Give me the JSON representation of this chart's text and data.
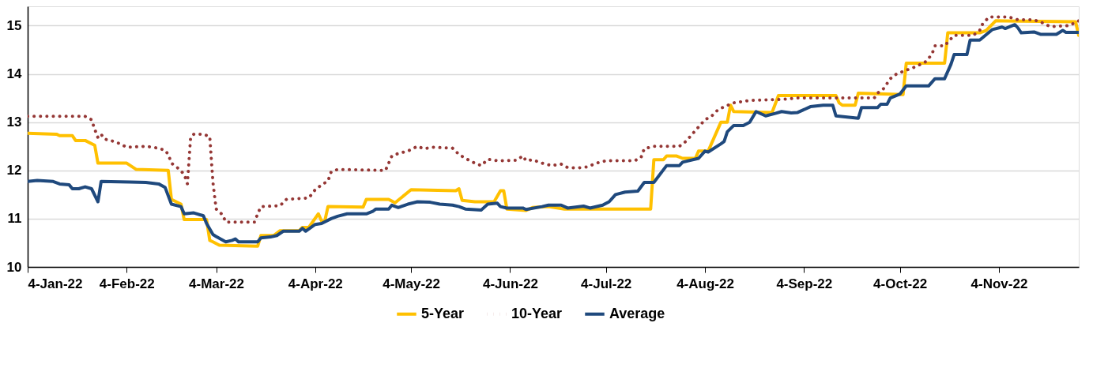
{
  "chart_data": {
    "type": "line",
    "xlim": [
      "2022-01-04",
      "2022-11-29"
    ],
    "xticks": [
      {
        "value": "2022-01-04",
        "label": "4-Jan-22"
      },
      {
        "value": "2022-02-04",
        "label": "4-Feb-22"
      },
      {
        "value": "2022-03-04",
        "label": "4-Mar-22"
      },
      {
        "value": "2022-04-04",
        "label": "4-Apr-22"
      },
      {
        "value": "2022-05-04",
        "label": "4-May-22"
      },
      {
        "value": "2022-06-04",
        "label": "4-Jun-22"
      },
      {
        "value": "2022-07-04",
        "label": "4-Jul-22"
      },
      {
        "value": "2022-08-04",
        "label": "4-Aug-22"
      },
      {
        "value": "2022-09-04",
        "label": "4-Sep-22"
      },
      {
        "value": "2022-10-04",
        "label": "4-Oct-22"
      },
      {
        "value": "2022-11-04",
        "label": "4-Nov-22"
      }
    ],
    "ylim": [
      10,
      15.4
    ],
    "yticks": [
      10,
      11,
      12,
      13,
      14,
      15
    ],
    "grid": "y",
    "legend": "bottom",
    "marker": "none",
    "series": [
      {
        "name": "5-Year",
        "color": "#ffc000",
        "line_style": "solid",
        "x": [
          "2022-01-04",
          "2022-01-13",
          "2022-01-14",
          "2022-01-18",
          "2022-01-19",
          "2022-01-22",
          "2022-01-25",
          "2022-01-26",
          "2022-02-04",
          "2022-02-07",
          "2022-02-17",
          "2022-02-18",
          "2022-02-21",
          "2022-02-22",
          "2022-03-01",
          "2022-03-02",
          "2022-03-03",
          "2022-03-05",
          "2022-03-17",
          "2022-03-18",
          "2022-03-22",
          "2022-03-24",
          "2022-03-30",
          "2022-03-31",
          "2022-04-02",
          "2022-04-05",
          "2022-04-06",
          "2022-04-07",
          "2022-04-08",
          "2022-04-19",
          "2022-04-20",
          "2022-04-27",
          "2022-04-29",
          "2022-05-04",
          "2022-05-18",
          "2022-05-19",
          "2022-05-20",
          "2022-05-24",
          "2022-05-30",
          "2022-06-01",
          "2022-06-02",
          "2022-06-03",
          "2022-06-09",
          "2022-06-11",
          "2022-06-16",
          "2022-06-21",
          "2022-07-18",
          "2022-07-19",
          "2022-07-22",
          "2022-07-23",
          "2022-07-26",
          "2022-07-28",
          "2022-08-01",
          "2022-08-02",
          "2022-08-05",
          "2022-08-09",
          "2022-08-11",
          "2022-08-12",
          "2022-08-13",
          "2022-08-25",
          "2022-08-27",
          "2022-09-14",
          "2022-09-15",
          "2022-09-16",
          "2022-09-20",
          "2022-09-21",
          "2022-10-05",
          "2022-10-06",
          "2022-10-18",
          "2022-10-19",
          "2022-10-29",
          "2022-10-31",
          "2022-11-03",
          "2022-11-28",
          "2022-11-29"
        ],
        "values": [
          12.77,
          12.75,
          12.72,
          12.72,
          12.62,
          12.62,
          12.52,
          12.15,
          12.15,
          12.02,
          12.0,
          11.4,
          11.3,
          10.98,
          10.98,
          10.55,
          10.52,
          10.45,
          10.43,
          10.65,
          10.65,
          10.75,
          10.75,
          10.82,
          10.82,
          11.1,
          10.95,
          10.95,
          11.25,
          11.24,
          11.4,
          11.4,
          11.33,
          11.6,
          11.58,
          11.62,
          11.38,
          11.35,
          11.35,
          11.58,
          11.58,
          11.2,
          11.17,
          11.23,
          11.25,
          11.2,
          11.2,
          12.22,
          12.22,
          12.3,
          12.3,
          12.25,
          12.25,
          12.4,
          12.4,
          13.0,
          13.0,
          13.35,
          13.22,
          13.2,
          13.55,
          13.55,
          13.4,
          13.35,
          13.35,
          13.6,
          13.57,
          14.22,
          14.22,
          14.85,
          14.85,
          14.9,
          15.1,
          15.08,
          14.8
        ]
      },
      {
        "name": "10-Year",
        "color": "#953735",
        "line_style": "dotted",
        "x": [
          "2022-01-04",
          "2022-01-22",
          "2022-01-24",
          "2022-01-25",
          "2022-01-26",
          "2022-01-27",
          "2022-01-28",
          "2022-01-31",
          "2022-02-02",
          "2022-02-04",
          "2022-02-10",
          "2022-02-13",
          "2022-02-16",
          "2022-02-17",
          "2022-02-18",
          "2022-02-20",
          "2022-02-22",
          "2022-02-23",
          "2022-02-24",
          "2022-02-25",
          "2022-02-28",
          "2022-03-02",
          "2022-03-03",
          "2022-03-04",
          "2022-03-06",
          "2022-03-07",
          "2022-03-16",
          "2022-03-17",
          "2022-03-18",
          "2022-03-24",
          "2022-03-26",
          "2022-03-31",
          "2022-04-02",
          "2022-04-04",
          "2022-04-06",
          "2022-04-08",
          "2022-04-09",
          "2022-04-11",
          "2022-04-26",
          "2022-04-27",
          "2022-04-28",
          "2022-04-30",
          "2022-05-03",
          "2022-05-06",
          "2022-05-08",
          "2022-05-11",
          "2022-05-17",
          "2022-05-19",
          "2022-05-21",
          "2022-05-24",
          "2022-05-26",
          "2022-05-28",
          "2022-05-31",
          "2022-06-06",
          "2022-06-08",
          "2022-06-09",
          "2022-06-11",
          "2022-06-14",
          "2022-06-17",
          "2022-06-20",
          "2022-06-22",
          "2022-06-25",
          "2022-06-28",
          "2022-07-01",
          "2022-07-04",
          "2022-07-13",
          "2022-07-15",
          "2022-07-16",
          "2022-07-19",
          "2022-07-27",
          "2022-07-29",
          "2022-07-31",
          "2022-08-02",
          "2022-08-04",
          "2022-08-06",
          "2022-08-08",
          "2022-08-10",
          "2022-08-13",
          "2022-08-18",
          "2022-08-28",
          "2022-09-02",
          "2022-09-26",
          "2022-09-27",
          "2022-09-29",
          "2022-10-01",
          "2022-10-03",
          "2022-10-07",
          "2022-10-09",
          "2022-10-12",
          "2022-10-14",
          "2022-10-15",
          "2022-10-18",
          "2022-10-21",
          "2022-10-27",
          "2022-10-29",
          "2022-10-30",
          "2022-11-01",
          "2022-11-07",
          "2022-11-10",
          "2022-11-15",
          "2022-11-18",
          "2022-11-20",
          "2022-11-26",
          "2022-11-29"
        ],
        "values": [
          13.12,
          13.12,
          13.05,
          12.85,
          12.68,
          12.75,
          12.65,
          12.6,
          12.55,
          12.48,
          12.5,
          12.47,
          12.42,
          12.33,
          12.15,
          12.05,
          11.92,
          11.72,
          12.68,
          12.75,
          12.75,
          12.7,
          11.75,
          11.2,
          11.08,
          10.93,
          10.93,
          11.1,
          11.25,
          11.27,
          11.4,
          11.42,
          11.43,
          11.6,
          11.7,
          11.78,
          11.97,
          12.02,
          12.0,
          12.15,
          12.3,
          12.35,
          12.4,
          12.5,
          12.45,
          12.48,
          12.46,
          12.33,
          12.25,
          12.15,
          12.1,
          12.23,
          12.2,
          12.21,
          12.3,
          12.2,
          12.22,
          12.15,
          12.1,
          12.13,
          12.06,
          12.05,
          12.07,
          12.15,
          12.2,
          12.2,
          12.27,
          12.45,
          12.5,
          12.5,
          12.6,
          12.75,
          12.9,
          13.05,
          13.12,
          13.25,
          13.32,
          13.4,
          13.45,
          13.47,
          13.5,
          13.5,
          13.6,
          13.7,
          13.9,
          14.0,
          14.1,
          14.15,
          14.25,
          14.4,
          14.58,
          14.58,
          14.8,
          14.8,
          14.9,
          15.05,
          15.18,
          15.18,
          15.12,
          15.12,
          15.05,
          14.98,
          15.0,
          15.1
        ]
      },
      {
        "name": "Average",
        "color": "#1f497d",
        "line_style": "solid",
        "x": [
          "2022-01-04",
          "2022-01-07",
          "2022-01-12",
          "2022-01-14",
          "2022-01-17",
          "2022-01-18",
          "2022-01-20",
          "2022-01-22",
          "2022-01-24",
          "2022-01-26",
          "2022-01-27",
          "2022-02-05",
          "2022-02-10",
          "2022-02-14",
          "2022-02-16",
          "2022-02-18",
          "2022-02-21",
          "2022-02-22",
          "2022-02-25",
          "2022-02-28",
          "2022-03-01",
          "2022-03-03",
          "2022-03-04",
          "2022-03-07",
          "2022-03-09",
          "2022-03-10",
          "2022-03-11",
          "2022-03-17",
          "2022-03-18",
          "2022-03-21",
          "2022-03-23",
          "2022-03-25",
          "2022-03-30",
          "2022-03-31",
          "2022-04-01",
          "2022-04-04",
          "2022-04-06",
          "2022-04-09",
          "2022-04-11",
          "2022-04-14",
          "2022-04-20",
          "2022-04-22",
          "2022-04-23",
          "2022-04-27",
          "2022-04-28",
          "2022-04-30",
          "2022-05-03",
          "2022-05-06",
          "2022-05-10",
          "2022-05-13",
          "2022-05-17",
          "2022-05-19",
          "2022-05-21",
          "2022-05-26",
          "2022-05-28",
          "2022-05-31",
          "2022-06-01",
          "2022-06-03",
          "2022-06-08",
          "2022-06-09",
          "2022-06-14",
          "2022-06-16",
          "2022-06-20",
          "2022-06-22",
          "2022-06-27",
          "2022-06-29",
          "2022-07-03",
          "2022-07-05",
          "2022-07-07",
          "2022-07-10",
          "2022-07-14",
          "2022-07-16",
          "2022-07-19",
          "2022-07-23",
          "2022-07-27",
          "2022-07-28",
          "2022-08-02",
          "2022-08-04",
          "2022-08-05",
          "2022-08-09",
          "2022-08-10",
          "2022-08-11",
          "2022-08-13",
          "2022-08-16",
          "2022-08-18",
          "2022-08-20",
          "2022-08-23",
          "2022-08-26",
          "2022-08-28",
          "2022-08-31",
          "2022-09-02",
          "2022-09-06",
          "2022-09-10",
          "2022-09-13",
          "2022-09-14",
          "2022-09-21",
          "2022-09-22",
          "2022-09-27",
          "2022-09-28",
          "2022-09-30",
          "2022-10-01",
          "2022-10-04",
          "2022-10-06",
          "2022-10-13",
          "2022-10-15",
          "2022-10-18",
          "2022-10-20",
          "2022-10-21",
          "2022-10-25",
          "2022-10-26",
          "2022-10-29",
          "2022-11-02",
          "2022-11-05",
          "2022-11-06",
          "2022-11-09",
          "2022-11-10",
          "2022-11-11",
          "2022-11-15",
          "2022-11-17",
          "2022-11-22",
          "2022-11-24",
          "2022-11-25",
          "2022-11-29"
        ],
        "values": [
          11.77,
          11.79,
          11.77,
          11.72,
          11.7,
          11.62,
          11.62,
          11.66,
          11.62,
          11.35,
          11.77,
          11.76,
          11.75,
          11.72,
          11.65,
          11.3,
          11.25,
          11.1,
          11.12,
          11.06,
          10.9,
          10.67,
          10.63,
          10.52,
          10.55,
          10.58,
          10.52,
          10.52,
          10.6,
          10.62,
          10.65,
          10.74,
          10.74,
          10.8,
          10.74,
          10.88,
          10.9,
          11.0,
          11.05,
          11.1,
          11.1,
          11.15,
          11.2,
          11.2,
          11.28,
          11.23,
          11.3,
          11.35,
          11.34,
          11.3,
          11.28,
          11.25,
          11.2,
          11.18,
          11.3,
          11.32,
          11.25,
          11.22,
          11.22,
          11.19,
          11.25,
          11.28,
          11.28,
          11.22,
          11.26,
          11.22,
          11.28,
          11.35,
          11.5,
          11.55,
          11.57,
          11.75,
          11.75,
          12.1,
          12.1,
          12.17,
          12.25,
          12.4,
          12.38,
          12.55,
          12.6,
          12.8,
          12.93,
          12.93,
          13.0,
          13.22,
          13.13,
          13.18,
          13.22,
          13.19,
          13.2,
          13.32,
          13.35,
          13.35,
          13.13,
          13.08,
          13.3,
          13.3,
          13.37,
          13.37,
          13.5,
          13.58,
          13.75,
          13.75,
          13.9,
          13.9,
          14.2,
          14.4,
          14.4,
          14.7,
          14.7,
          14.92,
          14.97,
          14.94,
          15.02,
          14.95,
          14.85,
          14.87,
          14.82,
          14.82,
          14.9,
          14.86,
          14.86
        ]
      }
    ]
  }
}
